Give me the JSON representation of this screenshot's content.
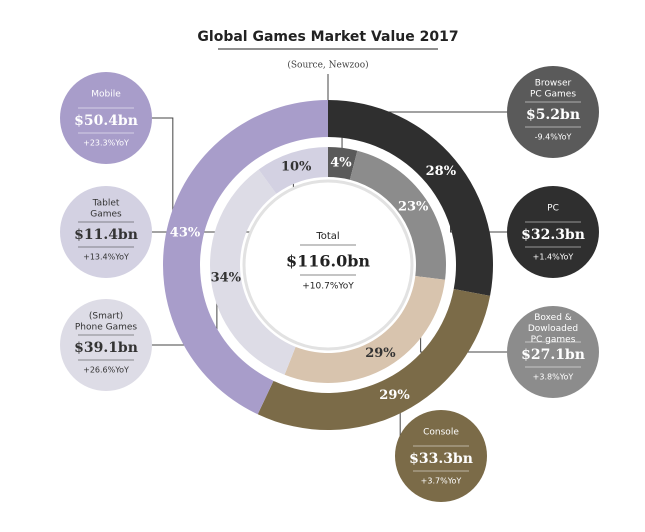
{
  "chart_data": {
    "type": "donut",
    "title": "Global Games Market Value 2017",
    "subtitle": "(Source, Newzoo)",
    "center": {
      "label": "Total",
      "amount": "$116.0bn",
      "change": "+10.7%YoY"
    },
    "outer": {
      "categories": [
        "PC",
        "Console",
        "Mobile"
      ],
      "values": [
        28,
        29,
        43
      ],
      "value_labels": [
        "28%",
        "29%",
        "43%"
      ],
      "amounts": [
        "$32.3bn",
        "$33.3bn",
        "$50.4bn"
      ],
      "changes": [
        "+1.4%YoY",
        "+3.7%YoY",
        "+23.3%YoY"
      ],
      "colors": [
        "#2f2f2f",
        "#7b6b48",
        "#a89dca"
      ]
    },
    "inner": {
      "categories": [
        "Browser\nPC Games",
        "Boxed &\nDowloaded\nPC games",
        null,
        "(Smart)\nPhone Games",
        "Tablet\nGames"
      ],
      "values": [
        4,
        23,
        29,
        34,
        10
      ],
      "value_labels": [
        "4%",
        "23%",
        "29%",
        "34%",
        "10%"
      ],
      "amounts": [
        "$5.2bn",
        "$27.1bn",
        null,
        "$39.1bn",
        "$11.4bn"
      ],
      "changes": [
        "-9.4%YoY",
        "+3.8%YoY",
        null,
        "+26.6%YoY",
        "+13.4%YoY"
      ],
      "colors": [
        "#5a5a5a",
        "#8c8c8c",
        "#d8c4ae",
        "#dddce6",
        "#d3d1e2"
      ]
    }
  }
}
